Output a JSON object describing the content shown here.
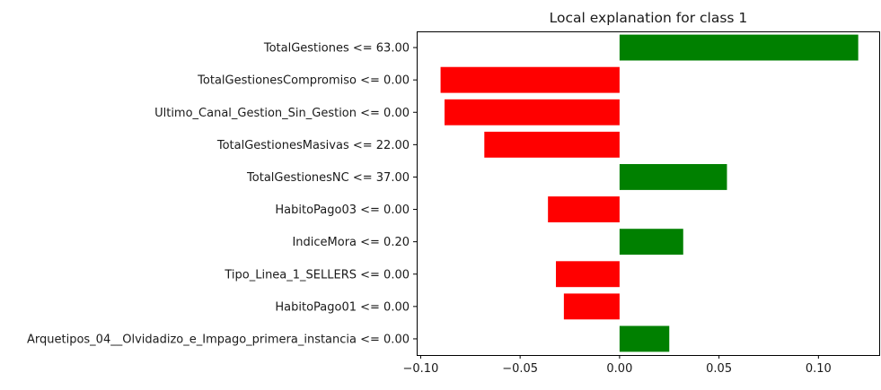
{
  "chart_data": {
    "type": "bar",
    "orientation": "horizontal",
    "title": "Local explanation for class 1",
    "xlabel": "",
    "ylabel": "",
    "xlim": [
      -0.102,
      0.131
    ],
    "grid": false,
    "colors": {
      "positive": "#008000",
      "negative": "#ff0000"
    },
    "categories": [
      "TotalGestiones <= 63.00",
      "TotalGestionesCompromiso <= 0.00",
      "Ultimo_Canal_Gestion_Sin_Gestion <= 0.00",
      "TotalGestionesMasivas <= 22.00",
      "TotalGestionesNC <= 37.00",
      "HabitoPago03 <= 0.00",
      "IndiceMora <= 0.20",
      "Tipo_Linea_1_SELLERS <= 0.00",
      "HabitoPago01 <= 0.00",
      "Arquetipos_04__Olvidadizo_e_Impago_primera_instancia <= 0.00"
    ],
    "values": [
      0.12,
      -0.09,
      -0.088,
      -0.068,
      0.054,
      -0.036,
      0.032,
      -0.032,
      -0.028,
      0.025
    ],
    "xticks": [
      {
        "value": -0.1,
        "label": "−0.10"
      },
      {
        "value": -0.05,
        "label": "−0.05"
      },
      {
        "value": 0.0,
        "label": "0.00"
      },
      {
        "value": 0.05,
        "label": "0.05"
      },
      {
        "value": 0.1,
        "label": "0.10"
      }
    ]
  }
}
